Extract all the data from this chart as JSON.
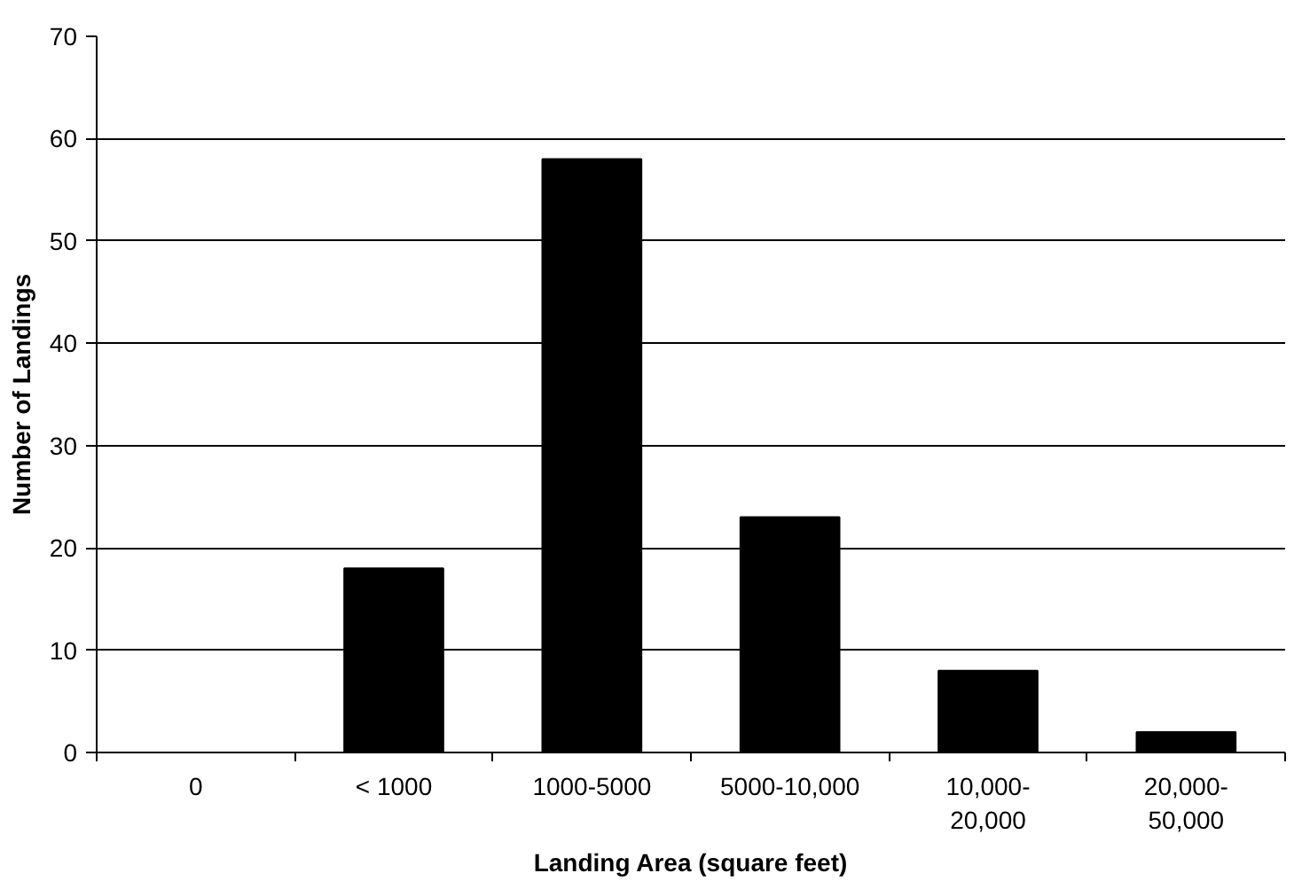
{
  "chart_data": {
    "type": "bar",
    "xlabel": "Landing Area (square feet)",
    "ylabel": "Number of Landings",
    "categories": [
      "0",
      "< 1000",
      "1000-5000",
      "5000-10,000",
      "10,000-\n20,000",
      "20,000-\n50,000"
    ],
    "values": [
      0,
      18,
      58,
      23,
      8,
      2
    ],
    "color": "#000000",
    "ylim": [
      0,
      70
    ],
    "yticks": [
      0,
      10,
      20,
      30,
      40,
      50,
      60,
      70
    ],
    "grid": "y"
  }
}
